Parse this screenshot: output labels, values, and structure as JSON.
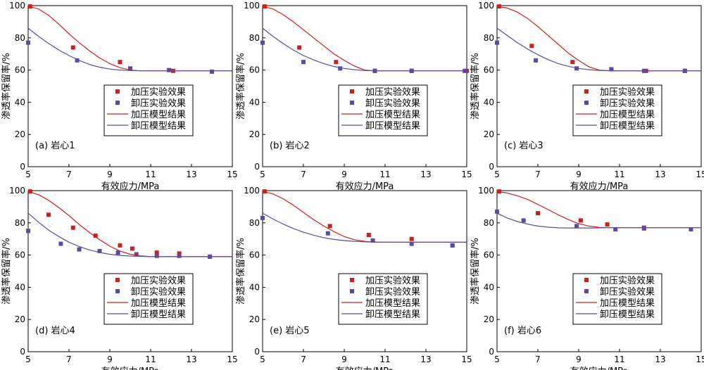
{
  "colors": {
    "loading": "#cc1f1f",
    "unloading": "#5b4aa0"
  },
  "legend_labels": [
    "加压实验效果",
    "卸压实验效果",
    "加压模型结果",
    "卸压模型结果"
  ],
  "chart_data": [
    {
      "type": "scatter",
      "panel_label": "(a) 岩心1",
      "xlabel": "有效应力/MPa",
      "ylabel": "渗透率保留率/%",
      "xlim": [
        5,
        15
      ],
      "ylim": [
        0,
        100
      ],
      "xticks": [
        5,
        7,
        9,
        11,
        13,
        15
      ],
      "yticks": [
        0,
        20,
        40,
        60,
        80,
        100
      ],
      "legend_position": "center-right",
      "series": [
        {
          "name": "加压实验效果",
          "kind": "points",
          "x": [
            5.1,
            7.2,
            9.5,
            12.1
          ],
          "y": [
            99.5,
            74,
            65,
            59.5
          ]
        },
        {
          "name": "卸压实验效果",
          "kind": "points",
          "x": [
            5.0,
            7.4,
            10.0,
            11.9,
            14.0
          ],
          "y": [
            77,
            66,
            61,
            60,
            59
          ]
        },
        {
          "name": "加压模型结果",
          "kind": "line",
          "x": [
            5.0,
            5.5,
            6.0,
            6.5,
            7.0,
            7.5,
            8.0,
            8.5,
            9.0,
            9.5,
            10.0,
            10.5,
            11.0,
            12.0,
            13.0,
            14.0,
            15.0
          ],
          "y": [
            99.5,
            98,
            94,
            88.5,
            82.5,
            77,
            72,
            67.5,
            64,
            61.5,
            60,
            59.5,
            59.5,
            59.5,
            59.5,
            59.5,
            59.5
          ]
        },
        {
          "name": "卸压模型结果",
          "kind": "line",
          "x": [
            5.0,
            5.5,
            6.0,
            6.5,
            7.0,
            7.5,
            8.0,
            8.5,
            9.0,
            9.5,
            10.0,
            10.5,
            11.0,
            12.0,
            13.0,
            14.0,
            15.0
          ],
          "y": [
            86,
            81,
            76.5,
            72.5,
            69,
            66,
            63.5,
            61.8,
            60.6,
            60,
            59.7,
            59.5,
            59.5,
            59.5,
            59.5,
            59.5,
            59.5
          ]
        }
      ]
    },
    {
      "type": "scatter",
      "panel_label": "(b) 岩心2",
      "xlabel": "有效应力/MPa",
      "ylabel": "渗透率保留率/%",
      "xlim": [
        5,
        15
      ],
      "ylim": [
        0,
        100
      ],
      "xticks": [
        5,
        7,
        9,
        11,
        13,
        15
      ],
      "yticks": [
        0,
        20,
        40,
        60,
        80,
        100
      ],
      "legend_position": "center-right",
      "series": [
        {
          "name": "加压实验效果",
          "kind": "points",
          "x": [
            5.1,
            6.8,
            8.6,
            10.5,
            12.3,
            15.0
          ],
          "y": [
            99.5,
            74,
            65,
            59.5,
            59.5,
            59.5
          ]
        },
        {
          "name": "卸压实验效果",
          "kind": "points",
          "x": [
            5.0,
            7.0,
            8.8,
            10.5,
            12.3,
            14.9
          ],
          "y": [
            77,
            65,
            61,
            59.5,
            59.5,
            59.5
          ]
        },
        {
          "name": "加压模型结果",
          "kind": "line",
          "x": [
            5.0,
            5.5,
            6.0,
            6.5,
            7.0,
            7.5,
            8.0,
            8.5,
            9.0,
            9.5,
            10.0,
            10.5,
            11.0,
            12.0,
            13.0,
            14.0,
            15.0
          ],
          "y": [
            99.5,
            98,
            94.5,
            90,
            85,
            80,
            75,
            70,
            66,
            62.5,
            60,
            59.5,
            59.5,
            59.5,
            59.5,
            59.5,
            59.5
          ]
        },
        {
          "name": "卸压模型结果",
          "kind": "line",
          "x": [
            5.0,
            5.5,
            6.0,
            6.5,
            7.0,
            7.5,
            8.0,
            8.5,
            9.0,
            9.5,
            10.0,
            10.5,
            11.0,
            12.0,
            13.0,
            14.0,
            15.0
          ],
          "y": [
            86,
            81,
            76.5,
            72.5,
            69,
            66.3,
            64,
            62.2,
            61,
            60.2,
            59.7,
            59.5,
            59.5,
            59.5,
            59.5,
            59.5,
            59.5
          ]
        }
      ]
    },
    {
      "type": "scatter",
      "panel_label": "(c) 岩心3",
      "xlabel": "有效应力/MPa",
      "ylabel": "渗透率保留率/%",
      "xlim": [
        5,
        15
      ],
      "ylim": [
        0,
        100
      ],
      "xticks": [
        5,
        7,
        9,
        11,
        13,
        15
      ],
      "yticks": [
        0,
        20,
        40,
        60,
        80,
        100
      ],
      "legend_position": "center-right",
      "series": [
        {
          "name": "加压实验效果",
          "kind": "points",
          "x": [
            5.1,
            6.7,
            8.7,
            10.6,
            12.3,
            14.2
          ],
          "y": [
            99.5,
            75,
            65,
            60.5,
            59.5,
            59.5
          ]
        },
        {
          "name": "卸压实验效果",
          "kind": "points",
          "x": [
            5.0,
            6.9,
            8.9,
            10.6,
            12.2,
            14.2
          ],
          "y": [
            77,
            66,
            61,
            60.5,
            59.5,
            59.5
          ]
        },
        {
          "name": "加压模型结果",
          "kind": "line",
          "x": [
            5.0,
            5.5,
            6.0,
            6.5,
            7.0,
            7.5,
            8.0,
            8.5,
            9.0,
            9.5,
            10.0,
            10.5,
            11.0,
            12.0,
            13.0,
            14.0,
            15.0
          ],
          "y": [
            99.5,
            98.5,
            96,
            92,
            87,
            81.5,
            76,
            70.5,
            66,
            62,
            60,
            59.5,
            59.5,
            59.5,
            59.5,
            59.5,
            59.5
          ]
        },
        {
          "name": "卸压模型结果",
          "kind": "line",
          "x": [
            5.0,
            5.5,
            6.0,
            6.5,
            7.0,
            7.5,
            8.0,
            8.5,
            9.0,
            9.5,
            10.0,
            10.5,
            11.0,
            12.0,
            13.0,
            14.0,
            15.0
          ],
          "y": [
            86,
            81.5,
            77,
            73,
            69.5,
            66.5,
            64,
            62.3,
            61,
            60.2,
            59.8,
            59.6,
            59.5,
            59.5,
            59.5,
            59.5,
            59.5
          ]
        }
      ]
    },
    {
      "type": "scatter",
      "panel_label": "(d) 岩心4",
      "xlabel": "有效应力/MPa",
      "ylabel": "渗透率保留率/%",
      "xlim": [
        5,
        15
      ],
      "ylim": [
        0,
        100
      ],
      "xticks": [
        5,
        7,
        9,
        11,
        13,
        15
      ],
      "yticks": [
        0,
        20,
        40,
        60,
        80,
        100
      ],
      "legend_position": "bottom-right",
      "series": [
        {
          "name": "加压实验效果",
          "kind": "points",
          "x": [
            5.1,
            6.0,
            7.2,
            8.3,
            9.5,
            10.1,
            11.3,
            12.4,
            13.9
          ],
          "y": [
            99.5,
            85,
            77,
            72,
            66,
            64,
            61.5,
            61,
            59
          ]
        },
        {
          "name": "卸压实验效果",
          "kind": "points",
          "x": [
            5.0,
            6.6,
            7.5,
            8.5,
            9.4,
            10.3,
            11.3,
            12.4,
            13.9
          ],
          "y": [
            75,
            67,
            63.5,
            62.5,
            61.5,
            60.5,
            59.5,
            59.5,
            59
          ]
        },
        {
          "name": "加压模型结果",
          "kind": "line",
          "x": [
            5.0,
            5.5,
            6.0,
            6.5,
            7.0,
            7.5,
            8.0,
            8.5,
            9.0,
            9.5,
            10.0,
            10.5,
            11.0,
            12.0,
            13.0,
            14.0,
            15.0
          ],
          "y": [
            99.5,
            97.5,
            94,
            89.5,
            84.5,
            79,
            74,
            69.5,
            65.5,
            62.5,
            60.5,
            59.5,
            59,
            59,
            59,
            59,
            59
          ]
        },
        {
          "name": "卸压模型结果",
          "kind": "line",
          "x": [
            5.0,
            5.5,
            6.0,
            6.5,
            7.0,
            7.5,
            8.0,
            8.5,
            9.0,
            9.5,
            10.0,
            10.5,
            11.0,
            12.0,
            13.0,
            14.0,
            15.0
          ],
          "y": [
            86,
            80.5,
            75.5,
            71.5,
            68,
            65.3,
            63.2,
            61.6,
            60.5,
            59.8,
            59.4,
            59.2,
            59,
            59,
            59,
            59,
            59
          ]
        }
      ]
    },
    {
      "type": "scatter",
      "panel_label": "(e) 岩心5",
      "xlabel": "有效应力/MPa",
      "ylabel": "渗透率保留率/%",
      "xlim": [
        5,
        15
      ],
      "ylim": [
        0,
        100
      ],
      "xticks": [
        5,
        7,
        9,
        11,
        13,
        15
      ],
      "yticks": [
        0,
        20,
        40,
        60,
        80,
        100
      ],
      "legend_position": "bottom-right",
      "series": [
        {
          "name": "加压实验效果",
          "kind": "points",
          "x": [
            5.1,
            8.3,
            10.2,
            12.3,
            14.3
          ],
          "y": [
            99.5,
            78,
            72.5,
            70,
            66
          ]
        },
        {
          "name": "卸压实验效果",
          "kind": "points",
          "x": [
            5.0,
            8.2,
            10.4,
            12.3,
            14.3
          ],
          "y": [
            83,
            73.5,
            69,
            67,
            66
          ]
        },
        {
          "name": "加压模型结果",
          "kind": "line",
          "x": [
            5.0,
            5.5,
            6.0,
            6.5,
            7.0,
            7.5,
            8.0,
            8.5,
            9.0,
            9.5,
            10.0,
            10.5,
            11.0,
            12.0,
            13.0,
            14.0,
            15.0
          ],
          "y": [
            99.5,
            98,
            95,
            91,
            86.5,
            82,
            78,
            74.5,
            71.5,
            69.5,
            68.5,
            68,
            68,
            68,
            68,
            68,
            68
          ]
        },
        {
          "name": "卸压模型结果",
          "kind": "line",
          "x": [
            5.0,
            5.5,
            6.0,
            6.5,
            7.0,
            7.5,
            8.0,
            8.5,
            9.0,
            9.5,
            10.0,
            10.5,
            11.0,
            12.0,
            13.0,
            14.0,
            15.0
          ],
          "y": [
            86,
            82.5,
            79.3,
            76.5,
            74.2,
            72.3,
            70.8,
            69.7,
            69,
            68.5,
            68.2,
            68.1,
            68,
            68,
            68,
            68,
            68
          ]
        }
      ]
    },
    {
      "type": "scatter",
      "panel_label": "(f) 岩心6",
      "xlabel": "有效应力/MPa",
      "ylabel": "渗透率保留率/%",
      "xlim": [
        5,
        15
      ],
      "ylim": [
        0,
        100
      ],
      "xticks": [
        5,
        7,
        9,
        11,
        13,
        15
      ],
      "yticks": [
        0,
        20,
        40,
        60,
        80,
        100
      ],
      "legend_position": "bottom-right",
      "series": [
        {
          "name": "加压实验效果",
          "kind": "points",
          "x": [
            5.1,
            7.0,
            9.1,
            10.4,
            12.2
          ],
          "y": [
            99.5,
            86,
            81.5,
            79,
            77
          ]
        },
        {
          "name": "卸压实验效果",
          "kind": "points",
          "x": [
            5.0,
            6.3,
            8.9,
            10.8,
            12.2,
            14.5
          ],
          "y": [
            87,
            81.5,
            78,
            76,
            76.5,
            76
          ]
        },
        {
          "name": "加压模型结果",
          "kind": "line",
          "x": [
            5.0,
            5.5,
            6.0,
            6.5,
            7.0,
            7.5,
            8.0,
            8.5,
            9.0,
            9.5,
            10.0,
            10.5,
            11.0,
            12.0,
            13.0,
            14.0,
            15.0
          ],
          "y": [
            99.5,
            98.5,
            96.8,
            94.5,
            91.5,
            88.2,
            85,
            82,
            79.5,
            78,
            77.2,
            77,
            77,
            77,
            77,
            77,
            77
          ]
        },
        {
          "name": "卸压模型结果",
          "kind": "line",
          "x": [
            5.0,
            5.5,
            6.0,
            6.5,
            7.0,
            7.5,
            8.0,
            8.5,
            9.0,
            9.5,
            10.0,
            10.5,
            11.0,
            12.0,
            13.0,
            14.0,
            15.0
          ],
          "y": [
            86,
            83,
            80.8,
            79.2,
            78,
            77.3,
            76.9,
            76.8,
            76.8,
            76.8,
            76.9,
            77,
            77,
            77,
            77,
            77,
            77
          ]
        }
      ]
    }
  ]
}
